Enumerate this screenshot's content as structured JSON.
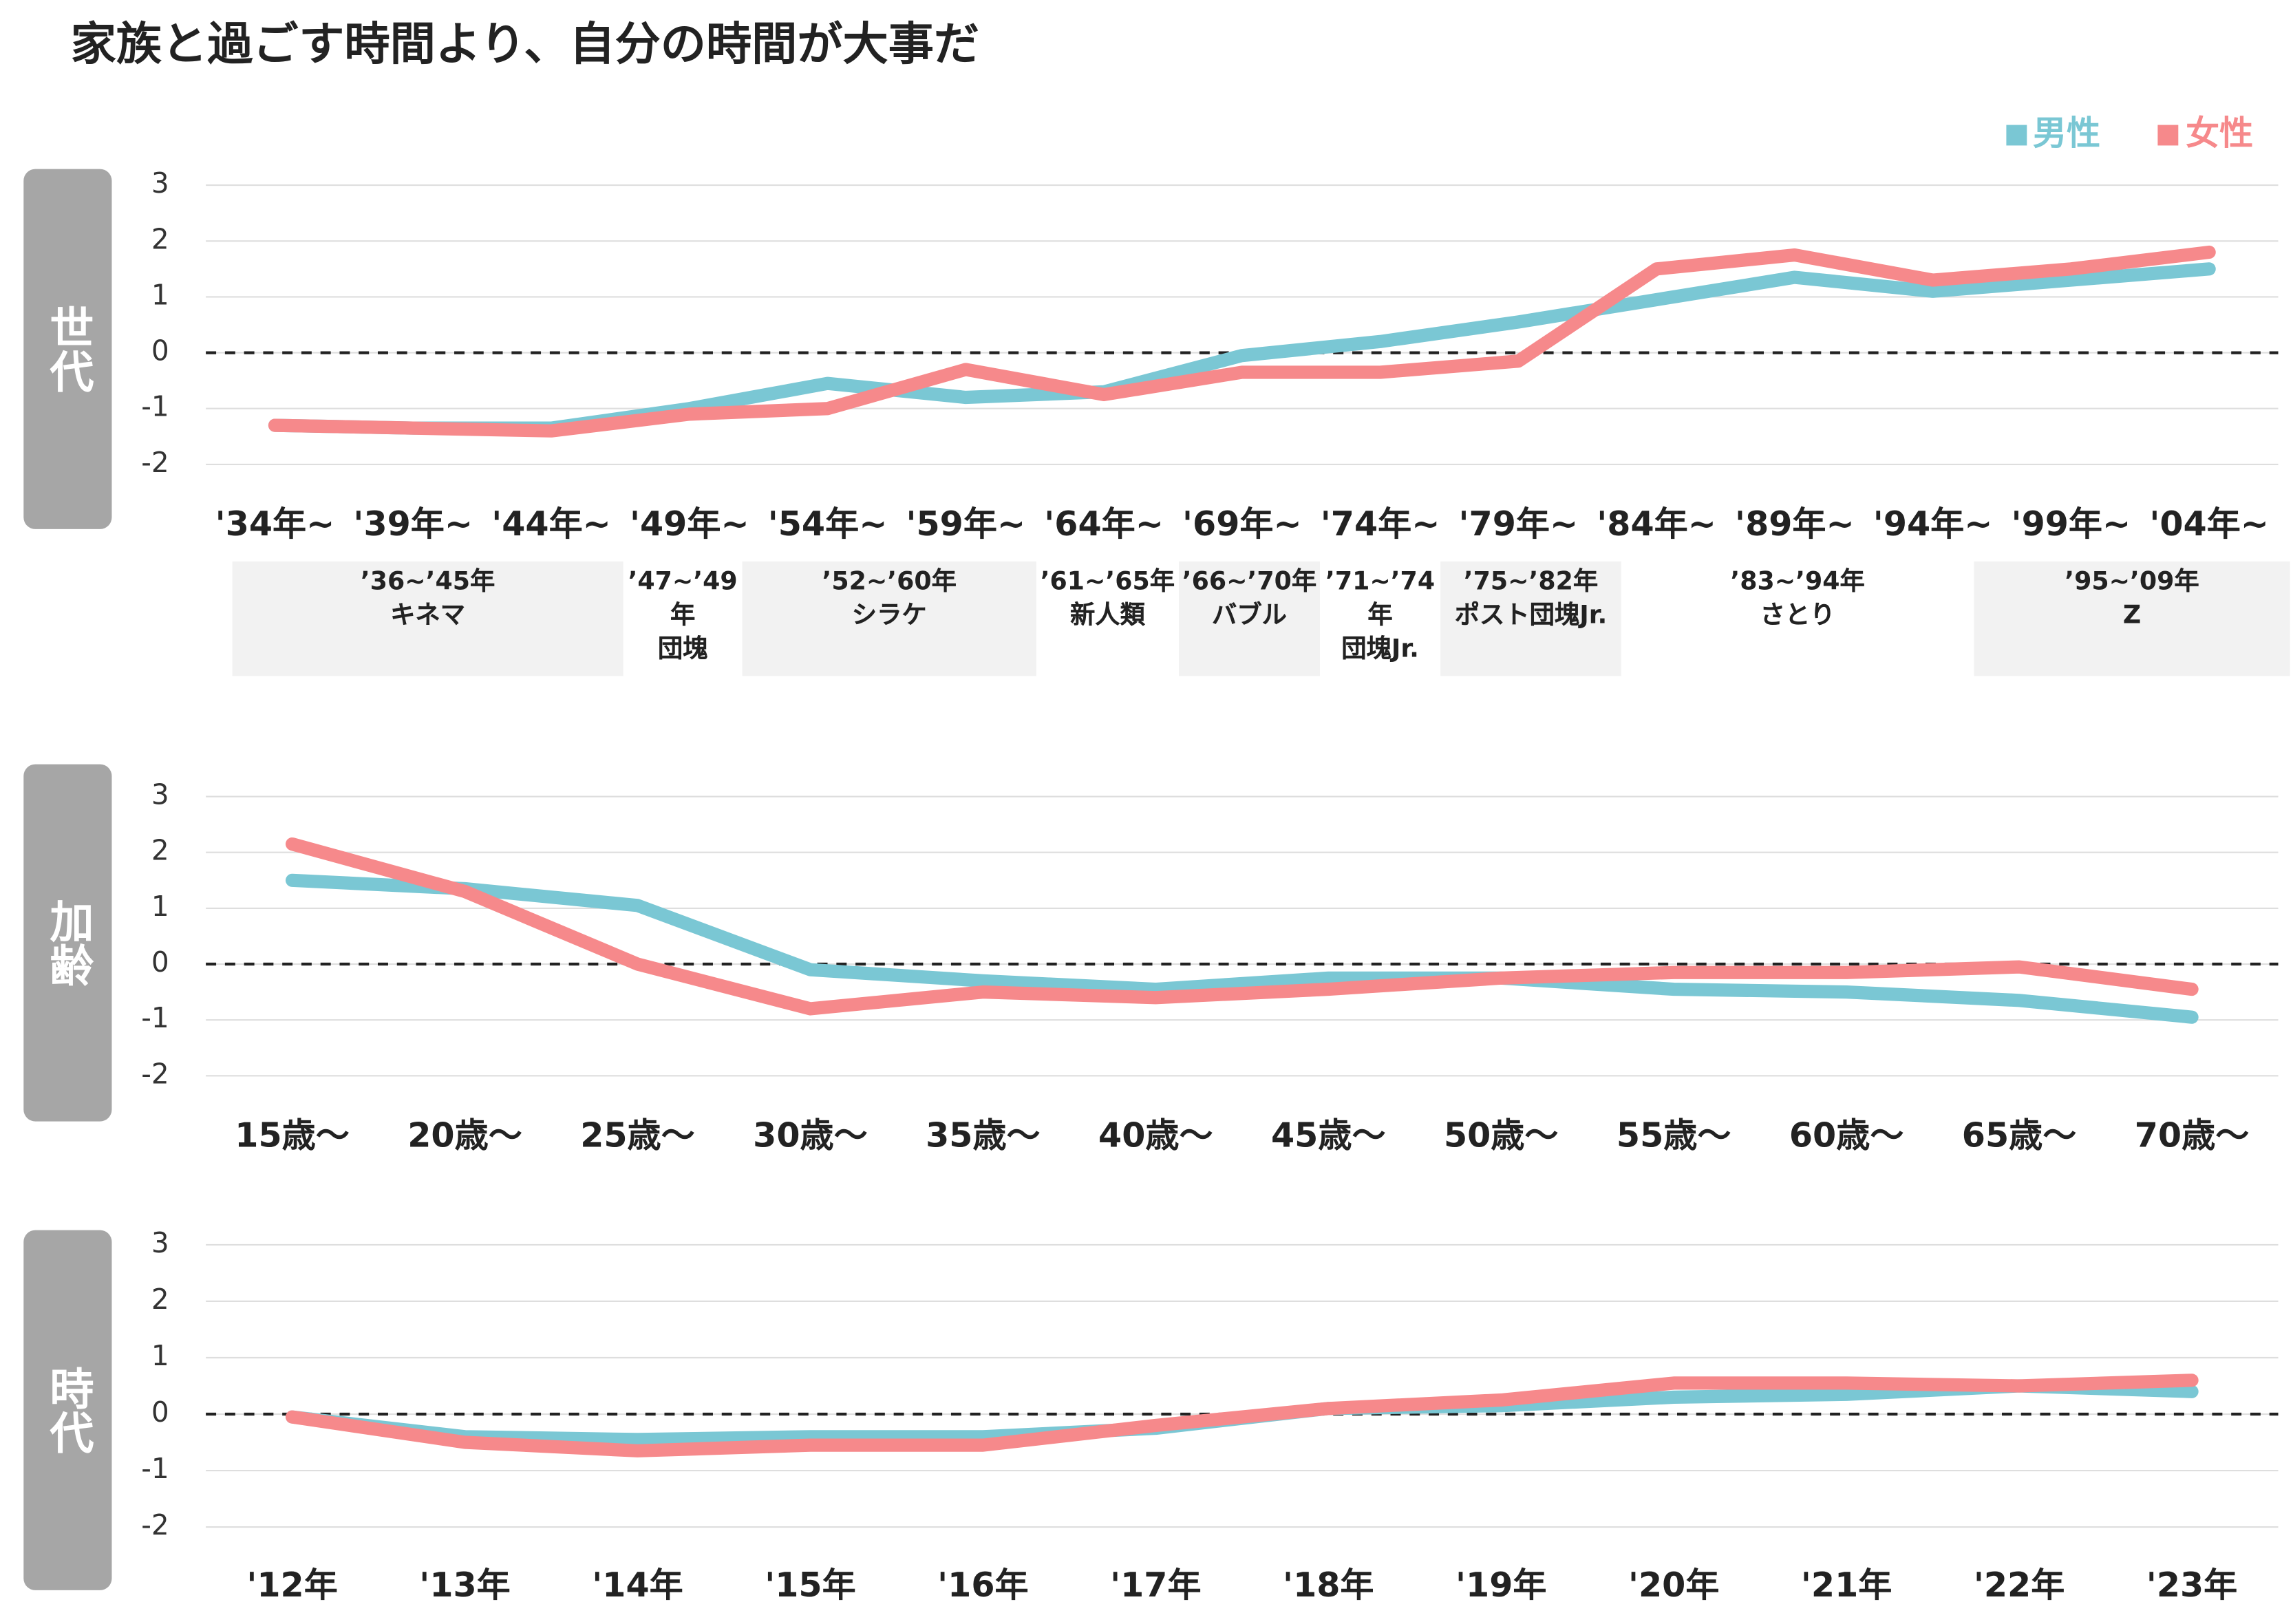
{
  "title": "家族と過ごす時間より、自分の時間が大事だ",
  "chart_data": [
    {
      "type": "line",
      "label": "世代",
      "categories": [
        "'34年~",
        "'39年~",
        "'44年~",
        "'49年~",
        "'54年~",
        "'59年~",
        "'64年~",
        "'69年~",
        "'74年~",
        "'79年~",
        "'84年~",
        "'89年~",
        "'94年~",
        "'99年~",
        "'04年~"
      ],
      "series": [
        {
          "name": "男性",
          "color": "#7ac7d4",
          "values": [
            -1.3,
            -1.35,
            -1.35,
            -1.0,
            -0.55,
            -0.8,
            -0.7,
            -0.05,
            0.2,
            0.55,
            0.95,
            1.35,
            1.1,
            1.3,
            1.5
          ]
        },
        {
          "name": "女性",
          "color": "#f6898b",
          "values": [
            -1.3,
            -1.35,
            -1.4,
            -1.1,
            -1.0,
            -0.3,
            -0.75,
            -0.35,
            -0.35,
            -0.15,
            1.5,
            1.75,
            1.3,
            1.5,
            1.8
          ]
        }
      ],
      "ylim": [
        -2,
        3
      ],
      "yticks": [
        -2,
        -1,
        0,
        1,
        2,
        3
      ],
      "grid": true,
      "zero_line": true,
      "generations": [
        {
          "years": "’36~’45年",
          "name": "キネマ"
        },
        {
          "years": "’47~’49年",
          "name": "団塊"
        },
        {
          "years": "’52~’60年",
          "name": "シラケ"
        },
        {
          "years": "’61~’65年",
          "name": "新人類"
        },
        {
          "years": "’66~’70年",
          "name": "バブル"
        },
        {
          "years": "’71~’74年",
          "name": "団塊Jr."
        },
        {
          "years": "’75~’82年",
          "name": "ポスト団塊Jr."
        },
        {
          "years": "’83~’94年",
          "name": "さとり"
        },
        {
          "years": "’95~’09年",
          "name": "Z"
        }
      ]
    },
    {
      "type": "line",
      "label": "加齢",
      "categories": [
        "15歳～",
        "20歳～",
        "25歳～",
        "30歳～",
        "35歳～",
        "40歳～",
        "45歳～",
        "50歳～",
        "55歳～",
        "60歳～",
        "65歳～",
        "70歳～"
      ],
      "series": [
        {
          "name": "男性",
          "color": "#7ac7d4",
          "values": [
            1.5,
            1.35,
            1.05,
            -0.1,
            -0.3,
            -0.45,
            -0.25,
            -0.25,
            -0.45,
            -0.5,
            -0.65,
            -0.95
          ]
        },
        {
          "name": "女性",
          "color": "#f6898b",
          "values": [
            2.15,
            1.3,
            0.0,
            -0.8,
            -0.5,
            -0.6,
            -0.45,
            -0.25,
            -0.15,
            -0.15,
            -0.05,
            -0.45
          ]
        }
      ],
      "ylim": [
        -2,
        3
      ],
      "yticks": [
        -2,
        -1,
        0,
        1,
        2,
        3
      ],
      "grid": true,
      "zero_line": true
    },
    {
      "type": "line",
      "label": "時代",
      "categories": [
        "'12年",
        "'13年",
        "'14年",
        "'15年",
        "'16年",
        "'17年",
        "'18年",
        "'19年",
        "'20年",
        "'21年",
        "'22年",
        "'23年"
      ],
      "series": [
        {
          "name": "男性",
          "color": "#7ac7d4",
          "values": [
            -0.05,
            -0.4,
            -0.45,
            -0.4,
            -0.4,
            -0.25,
            0.1,
            0.15,
            0.3,
            0.35,
            0.5,
            0.4
          ]
        },
        {
          "name": "女性",
          "color": "#f6898b",
          "values": [
            -0.05,
            -0.5,
            -0.65,
            -0.55,
            -0.55,
            -0.2,
            0.1,
            0.25,
            0.55,
            0.55,
            0.5,
            0.6
          ]
        }
      ],
      "ylim": [
        -2,
        3
      ],
      "yticks": [
        -2,
        -1,
        0,
        1,
        2,
        3
      ],
      "grid": true,
      "zero_line": true
    }
  ]
}
